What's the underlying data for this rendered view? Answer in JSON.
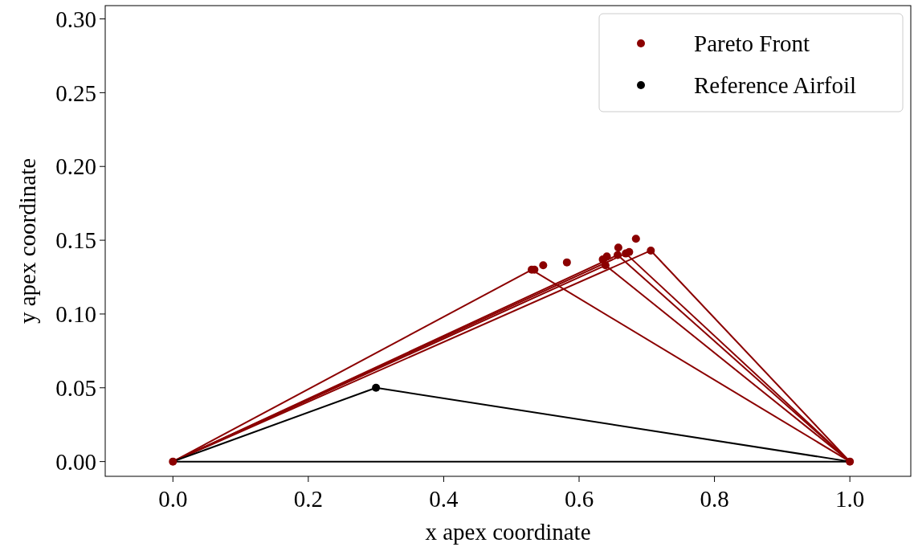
{
  "chart_data": {
    "type": "scatter",
    "xlabel": "x apex coordinate",
    "ylabel": "y apex coordinate",
    "xlim": [
      -0.1,
      1.09
    ],
    "ylim": [
      -0.01,
      0.309
    ],
    "xticks": [
      {
        "value": 0,
        "label": "0.0"
      },
      {
        "value": 0.2,
        "label": "0.2"
      },
      {
        "value": 0.4,
        "label": "0.4"
      },
      {
        "value": 0.6,
        "label": "0.6"
      },
      {
        "value": 0.8,
        "label": "0.8"
      },
      {
        "value": 1,
        "label": "1.0"
      }
    ],
    "yticks": [
      {
        "value": 0,
        "label": "0.00"
      },
      {
        "value": 0.05,
        "label": "0.05"
      },
      {
        "value": 0.1,
        "label": "0.10"
      },
      {
        "value": 0.15,
        "label": "0.15"
      },
      {
        "value": 0.2,
        "label": "0.20"
      },
      {
        "value": 0.25,
        "label": "0.25"
      },
      {
        "value": 0.3,
        "label": "0.30"
      }
    ],
    "grid": false,
    "legend": "top right",
    "series": [
      {
        "type": "line",
        "color": "#8b0000",
        "marker": "none",
        "x": [
          0,
          0.53,
          1
        ],
        "values": [
          0,
          0.13,
          0
        ]
      },
      {
        "type": "line",
        "color": "#8b0000",
        "marker": "none",
        "x": [
          0,
          0.639,
          1
        ],
        "values": [
          0,
          0.133,
          0
        ]
      },
      {
        "type": "line",
        "color": "#8b0000",
        "marker": "none",
        "x": [
          0,
          0.657,
          1
        ],
        "values": [
          0,
          0.14,
          0
        ]
      },
      {
        "type": "line",
        "color": "#8b0000",
        "marker": "none",
        "x": [
          0,
          0.669,
          1
        ],
        "values": [
          0,
          0.141,
          0
        ]
      },
      {
        "type": "line",
        "color": "#8b0000",
        "marker": "none",
        "x": [
          0,
          0.706,
          1
        ],
        "values": [
          0,
          0.143,
          0
        ]
      },
      {
        "type": "line",
        "color": "#000000",
        "marker": "none",
        "x": [
          0,
          0.3,
          1
        ],
        "values": [
          0,
          0.05,
          0
        ]
      },
      {
        "type": "line",
        "color": "#000000",
        "marker": "none",
        "x": [
          0,
          1
        ],
        "values": [
          0,
          0
        ]
      },
      {
        "name": "Pareto Front",
        "color": "#8b0000",
        "marker": "circle",
        "x": [
          0,
          1,
          0.53,
          0.534,
          0.547,
          0.582,
          0.635,
          0.639,
          0.641,
          0.657,
          0.658,
          0.669,
          0.674,
          0.684,
          0.706
        ],
        "values": [
          0,
          0,
          0.13,
          0.13,
          0.133,
          0.135,
          0.137,
          0.133,
          0.139,
          0.14,
          0.145,
          0.141,
          0.142,
          0.151,
          0.143
        ]
      },
      {
        "name": "Reference Airfoil",
        "color": "#000000",
        "marker": "circle",
        "x": [
          0.3
        ],
        "values": [
          0.05
        ]
      }
    ]
  }
}
